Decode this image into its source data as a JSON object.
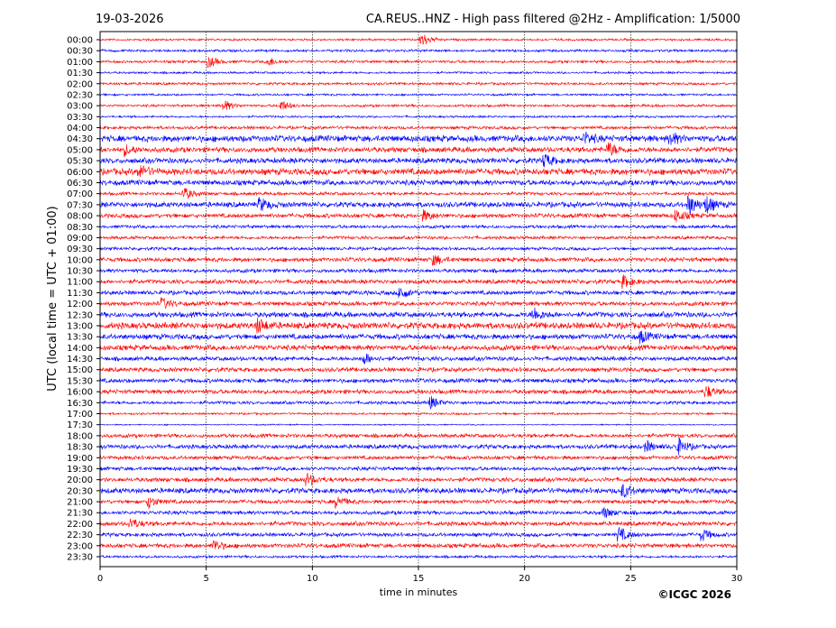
{
  "chart_data": {
    "type": "line",
    "date": "19-03-2026",
    "title": "CA.REUS..HNZ - High pass filtered @2Hz - Amplification: 1/5000",
    "xlabel": "time in minutes",
    "ylabel": "UTC (local time = UTC + 01:00)",
    "xlim": [
      0,
      30
    ],
    "xticks": [
      "0",
      "5",
      "10",
      "15",
      "20",
      "25",
      "30"
    ],
    "grid": "vertical dotted",
    "copyright": "©ICGC 2026",
    "colors": [
      "#ff0000",
      "#0000ff"
    ],
    "rows": [
      "00:00",
      "00:30",
      "01:00",
      "01:30",
      "02:00",
      "02:30",
      "03:00",
      "03:30",
      "04:00",
      "04:30",
      "05:00",
      "05:30",
      "06:00",
      "06:30",
      "07:00",
      "07:30",
      "08:00",
      "08:30",
      "09:00",
      "09:30",
      "10:00",
      "10:30",
      "11:00",
      "11:30",
      "12:00",
      "12:30",
      "13:00",
      "13:30",
      "14:00",
      "14:30",
      "15:00",
      "15:30",
      "16:00",
      "16:30",
      "17:00",
      "17:30",
      "18:00",
      "18:30",
      "19:00",
      "19:30",
      "20:00",
      "20:30",
      "21:00",
      "21:30",
      "22:00",
      "22:30",
      "23:00",
      "23:30"
    ],
    "noise_level": [
      1,
      1.2,
      1.3,
      1,
      1.2,
      1,
      1.2,
      1,
      1.5,
      3,
      2.5,
      2.5,
      3,
      2.5,
      1.5,
      2.5,
      2,
      1.5,
      1.5,
      1.5,
      2,
      1.8,
      2,
      2,
      2,
      2.5,
      3,
      2.5,
      2.5,
      2,
      2,
      2,
      2,
      1.5,
      1,
      0.6,
      1.8,
      2,
      1.8,
      1.8,
      2,
      2.5,
      1.8,
      1.8,
      2,
      1.8,
      2,
      1.2
    ],
    "events": [
      [
        0,
        15.2,
        7
      ],
      [
        2,
        5.2,
        5
      ],
      [
        2,
        8,
        4
      ],
      [
        6,
        5.9,
        5
      ],
      [
        6,
        8.6,
        5
      ],
      [
        9,
        26.9,
        6
      ],
      [
        9,
        22.9,
        5
      ],
      [
        10,
        24,
        7
      ],
      [
        10,
        1.2,
        5
      ],
      [
        11,
        21,
        6
      ],
      [
        12,
        1.9,
        6
      ],
      [
        14,
        4,
        6
      ],
      [
        15,
        7.6,
        6
      ],
      [
        15,
        27.8,
        9
      ],
      [
        15,
        28.6,
        8
      ],
      [
        16,
        15.3,
        5
      ],
      [
        16,
        27.2,
        6
      ],
      [
        20,
        15.8,
        5
      ],
      [
        22,
        24.7,
        6
      ],
      [
        23,
        14.2,
        6
      ],
      [
        24,
        3,
        5
      ],
      [
        25,
        20.5,
        6
      ],
      [
        26,
        7.5,
        7
      ],
      [
        27,
        25.5,
        6
      ],
      [
        29,
        12.5,
        5
      ],
      [
        32,
        28.6,
        6
      ],
      [
        33,
        15.6,
        6
      ],
      [
        37,
        27.3,
        8
      ],
      [
        37,
        25.8,
        5
      ],
      [
        40,
        9.8,
        6
      ],
      [
        41,
        24.7,
        6
      ],
      [
        42,
        2.3,
        6
      ],
      [
        42,
        11.2,
        6
      ],
      [
        43,
        23.8,
        5
      ],
      [
        44,
        1.5,
        5
      ],
      [
        45,
        24.5,
        7
      ],
      [
        46,
        5.4,
        6
      ],
      [
        45,
        28.4,
        6
      ]
    ]
  }
}
